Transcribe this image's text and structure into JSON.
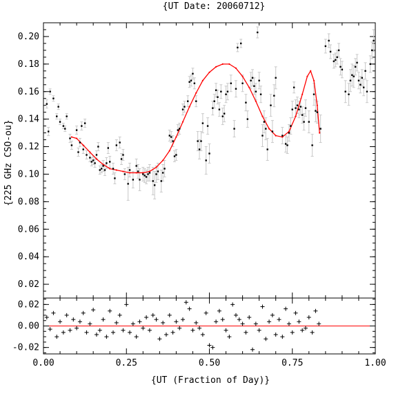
{
  "chart_data": {
    "type": "scatter",
    "title": "{UT Date: 20060712}",
    "xlabel": "{UT (Fraction of Day)}",
    "ylabel": "{225 GHz CSO-ou}",
    "xlim": [
      0.0,
      1.0
    ],
    "ylim": [
      0.01,
      0.21
    ],
    "xticks": [
      "0.00",
      "0.25",
      "0.50",
      "0.75",
      "1.00"
    ],
    "yticks": [
      "0.02",
      "0.04",
      "0.06",
      "0.08",
      "0.10",
      "0.12",
      "0.14",
      "0.16",
      "0.18",
      "0.20"
    ],
    "grid": false,
    "colors": {
      "data": "#000000",
      "errorbar": "#c8c8c8",
      "fit": "#ff0000",
      "zero_line": "#ff0000"
    },
    "series": [
      {
        "kind": "measurements_with_errorbars",
        "points": [
          [
            0.01,
            0.151,
            0.003
          ],
          [
            0.015,
            0.131,
            0.003
          ],
          [
            0.02,
            0.16,
            0.002
          ],
          [
            0.03,
            0.155,
            0.002
          ],
          [
            0.04,
            0.142,
            0.002
          ],
          [
            0.045,
            0.149,
            0.002
          ],
          [
            0.05,
            0.138,
            0.002
          ],
          [
            0.06,
            0.135,
            0.002
          ],
          [
            0.065,
            0.133,
            0.002
          ],
          [
            0.07,
            0.142,
            0.002
          ],
          [
            0.08,
            0.126,
            0.003
          ],
          [
            0.085,
            0.121,
            0.003
          ],
          [
            0.1,
            0.132,
            0.003
          ],
          [
            0.105,
            0.116,
            0.003
          ],
          [
            0.11,
            0.123,
            0.003
          ],
          [
            0.115,
            0.135,
            0.003
          ],
          [
            0.12,
            0.118,
            0.003
          ],
          [
            0.125,
            0.137,
            0.003
          ],
          [
            0.13,
            0.114,
            0.003
          ],
          [
            0.14,
            0.112,
            0.003
          ],
          [
            0.145,
            0.109,
            0.003
          ],
          [
            0.15,
            0.11,
            0.003
          ],
          [
            0.155,
            0.108,
            0.003
          ],
          [
            0.16,
            0.114,
            0.003
          ],
          [
            0.165,
            0.12,
            0.003
          ],
          [
            0.17,
            0.103,
            0.003
          ],
          [
            0.175,
            0.104,
            0.003
          ],
          [
            0.18,
            0.106,
            0.004
          ],
          [
            0.185,
            0.103,
            0.004
          ],
          [
            0.19,
            0.108,
            0.004
          ],
          [
            0.195,
            0.119,
            0.004
          ],
          [
            0.2,
            0.109,
            0.004
          ],
          [
            0.21,
            0.104,
            0.004
          ],
          [
            0.215,
            0.097,
            0.004
          ],
          [
            0.22,
            0.121,
            0.004
          ],
          [
            0.23,
            0.123,
            0.004
          ],
          [
            0.235,
            0.111,
            0.004
          ],
          [
            0.24,
            0.114,
            0.004
          ],
          [
            0.245,
            0.1,
            0.004
          ],
          [
            0.255,
            0.093,
            0.012
          ],
          [
            0.26,
            0.103,
            0.005
          ],
          [
            0.27,
            0.096,
            0.006
          ],
          [
            0.28,
            0.106,
            0.005
          ],
          [
            0.285,
            0.102,
            0.005
          ],
          [
            0.29,
            0.096,
            0.008
          ],
          [
            0.3,
            0.1,
            0.005
          ],
          [
            0.305,
            0.099,
            0.005
          ],
          [
            0.31,
            0.098,
            0.005
          ],
          [
            0.315,
            0.1,
            0.005
          ],
          [
            0.32,
            0.101,
            0.006
          ],
          [
            0.33,
            0.095,
            0.01
          ],
          [
            0.335,
            0.092,
            0.01
          ],
          [
            0.34,
            0.1,
            0.006
          ],
          [
            0.345,
            0.102,
            0.006
          ],
          [
            0.355,
            0.095,
            0.008
          ],
          [
            0.36,
            0.101,
            0.006
          ],
          [
            0.365,
            0.104,
            0.006
          ],
          [
            0.38,
            0.128,
            0.004
          ],
          [
            0.385,
            0.127,
            0.004
          ],
          [
            0.39,
            0.124,
            0.004
          ],
          [
            0.395,
            0.113,
            0.004
          ],
          [
            0.4,
            0.114,
            0.004
          ],
          [
            0.405,
            0.132,
            0.004
          ],
          [
            0.41,
            0.133,
            0.004
          ],
          [
            0.42,
            0.147,
            0.004
          ],
          [
            0.425,
            0.149,
            0.004
          ],
          [
            0.435,
            0.153,
            0.004
          ],
          [
            0.44,
            0.167,
            0.004
          ],
          [
            0.445,
            0.168,
            0.004
          ],
          [
            0.45,
            0.173,
            0.004
          ],
          [
            0.455,
            0.166,
            0.004
          ],
          [
            0.46,
            0.153,
            0.004
          ],
          [
            0.465,
            0.124,
            0.007
          ],
          [
            0.47,
            0.118,
            0.007
          ],
          [
            0.475,
            0.124,
            0.007
          ],
          [
            0.48,
            0.137,
            0.007
          ],
          [
            0.49,
            0.11,
            0.01
          ],
          [
            0.495,
            0.135,
            0.006
          ],
          [
            0.5,
            0.115,
            0.007
          ],
          [
            0.51,
            0.148,
            0.005
          ],
          [
            0.515,
            0.153,
            0.005
          ],
          [
            0.52,
            0.161,
            0.005
          ],
          [
            0.525,
            0.156,
            0.005
          ],
          [
            0.53,
            0.147,
            0.005
          ],
          [
            0.535,
            0.16,
            0.005
          ],
          [
            0.54,
            0.142,
            0.006
          ],
          [
            0.545,
            0.144,
            0.006
          ],
          [
            0.55,
            0.158,
            0.006
          ],
          [
            0.555,
            0.16,
            0.006
          ],
          [
            0.565,
            0.166,
            0.006
          ],
          [
            0.575,
            0.133,
            0.006
          ],
          [
            0.58,
            0.162,
            0.006
          ],
          [
            0.585,
            0.192,
            0.003
          ],
          [
            0.595,
            0.195,
            0.003
          ],
          [
            0.6,
            0.166,
            0.006
          ],
          [
            0.61,
            0.152,
            0.006
          ],
          [
            0.615,
            0.14,
            0.006
          ],
          [
            0.625,
            0.168,
            0.006
          ],
          [
            0.63,
            0.17,
            0.006
          ],
          [
            0.635,
            0.164,
            0.006
          ],
          [
            0.64,
            0.16,
            0.006
          ],
          [
            0.645,
            0.203,
            0.004
          ],
          [
            0.65,
            0.168,
            0.006
          ],
          [
            0.655,
            0.158,
            0.006
          ],
          [
            0.66,
            0.128,
            0.008
          ],
          [
            0.665,
            0.138,
            0.008
          ],
          [
            0.67,
            0.133,
            0.008
          ],
          [
            0.675,
            0.118,
            0.008
          ],
          [
            0.685,
            0.15,
            0.008
          ],
          [
            0.69,
            0.131,
            0.008
          ],
          [
            0.695,
            0.157,
            0.008
          ],
          [
            0.7,
            0.17,
            0.008
          ],
          [
            0.72,
            0.128,
            0.006
          ],
          [
            0.73,
            0.122,
            0.006
          ],
          [
            0.735,
            0.121,
            0.006
          ],
          [
            0.74,
            0.13,
            0.006
          ],
          [
            0.745,
            0.135,
            0.006
          ],
          [
            0.75,
            0.147,
            0.006
          ],
          [
            0.755,
            0.163,
            0.004
          ],
          [
            0.76,
            0.148,
            0.006
          ],
          [
            0.765,
            0.15,
            0.006
          ],
          [
            0.77,
            0.147,
            0.006
          ],
          [
            0.775,
            0.149,
            0.006
          ],
          [
            0.78,
            0.143,
            0.006
          ],
          [
            0.785,
            0.138,
            0.006
          ],
          [
            0.79,
            0.148,
            0.006
          ],
          [
            0.8,
            0.138,
            0.008
          ],
          [
            0.81,
            0.121,
            0.008
          ],
          [
            0.815,
            0.158,
            0.008
          ],
          [
            0.82,
            0.146,
            0.008
          ],
          [
            0.825,
            0.145,
            0.008
          ],
          [
            0.835,
            0.133,
            0.01
          ],
          [
            0.85,
            0.193,
            0.005
          ],
          [
            0.86,
            0.197,
            0.005
          ],
          [
            0.865,
            0.189,
            0.005
          ],
          [
            0.875,
            0.182,
            0.005
          ],
          [
            0.88,
            0.183,
            0.005
          ],
          [
            0.885,
            0.185,
            0.005
          ],
          [
            0.89,
            0.19,
            0.005
          ],
          [
            0.895,
            0.178,
            0.006
          ],
          [
            0.9,
            0.176,
            0.006
          ],
          [
            0.91,
            0.16,
            0.008
          ],
          [
            0.92,
            0.158,
            0.008
          ],
          [
            0.925,
            0.168,
            0.008
          ],
          [
            0.93,
            0.172,
            0.008
          ],
          [
            0.935,
            0.171,
            0.008
          ],
          [
            0.94,
            0.178,
            0.006
          ],
          [
            0.945,
            0.181,
            0.006
          ],
          [
            0.95,
            0.168,
            0.006
          ],
          [
            0.955,
            0.165,
            0.006
          ],
          [
            0.96,
            0.17,
            0.006
          ],
          [
            0.965,
            0.163,
            0.006
          ],
          [
            0.97,
            0.175,
            0.006
          ],
          [
            0.975,
            0.16,
            0.008
          ],
          [
            0.985,
            0.18,
            0.006
          ],
          [
            0.99,
            0.19,
            0.006
          ],
          [
            0.995,
            0.197,
            0.008
          ]
        ]
      },
      {
        "kind": "fit_curve",
        "points": [
          [
            0.085,
            0.127
          ],
          [
            0.1,
            0.126
          ],
          [
            0.12,
            0.121
          ],
          [
            0.14,
            0.116
          ],
          [
            0.16,
            0.111
          ],
          [
            0.18,
            0.107
          ],
          [
            0.2,
            0.104
          ],
          [
            0.22,
            0.103
          ],
          [
            0.24,
            0.102
          ],
          [
            0.26,
            0.101
          ],
          [
            0.28,
            0.101
          ],
          [
            0.3,
            0.101
          ],
          [
            0.32,
            0.102
          ],
          [
            0.34,
            0.105
          ],
          [
            0.36,
            0.11
          ],
          [
            0.38,
            0.117
          ],
          [
            0.4,
            0.127
          ],
          [
            0.42,
            0.138
          ],
          [
            0.44,
            0.149
          ],
          [
            0.46,
            0.159
          ],
          [
            0.48,
            0.168
          ],
          [
            0.5,
            0.174
          ],
          [
            0.52,
            0.178
          ],
          [
            0.54,
            0.18
          ],
          [
            0.56,
            0.18
          ],
          [
            0.58,
            0.177
          ],
          [
            0.6,
            0.171
          ],
          [
            0.62,
            0.163
          ],
          [
            0.64,
            0.153
          ],
          [
            0.66,
            0.142
          ],
          [
            0.68,
            0.133
          ],
          [
            0.7,
            0.128
          ],
          [
            0.72,
            0.127
          ],
          [
            0.74,
            0.131
          ],
          [
            0.76,
            0.142
          ],
          [
            0.78,
            0.158
          ],
          [
            0.795,
            0.171
          ],
          [
            0.805,
            0.175
          ],
          [
            0.815,
            0.168
          ],
          [
            0.825,
            0.15
          ],
          [
            0.832,
            0.13
          ]
        ]
      }
    ],
    "residual_panel": {
      "ylim": [
        -0.026,
        0.026
      ],
      "yticks": [
        "0.02",
        "0.00",
        "-0.02"
      ],
      "x": [
        0.01,
        0.02,
        0.03,
        0.04,
        0.05,
        0.06,
        0.07,
        0.08,
        0.09,
        0.1,
        0.11,
        0.12,
        0.13,
        0.14,
        0.15,
        0.16,
        0.17,
        0.18,
        0.19,
        0.2,
        0.21,
        0.22,
        0.23,
        0.24,
        0.25,
        0.26,
        0.27,
        0.28,
        0.29,
        0.3,
        0.31,
        0.32,
        0.33,
        0.34,
        0.35,
        0.36,
        0.37,
        0.38,
        0.39,
        0.4,
        0.41,
        0.42,
        0.43,
        0.44,
        0.45,
        0.46,
        0.47,
        0.48,
        0.49,
        0.5,
        0.51,
        0.52,
        0.53,
        0.54,
        0.55,
        0.56,
        0.57,
        0.58,
        0.59,
        0.6,
        0.61,
        0.62,
        0.63,
        0.64,
        0.65,
        0.66,
        0.67,
        0.68,
        0.69,
        0.7,
        0.71,
        0.72,
        0.73,
        0.74,
        0.75,
        0.76,
        0.77,
        0.78,
        0.79,
        0.8,
        0.81,
        0.82,
        0.83
      ],
      "residuals": [
        0.008,
        -0.003,
        0.012,
        -0.01,
        0.004,
        -0.006,
        0.01,
        -0.004,
        0.006,
        -0.002,
        0.004,
        0.012,
        -0.006,
        0.002,
        0.015,
        -0.008,
        -0.004,
        0.006,
        -0.01,
        0.014,
        -0.006,
        0.003,
        0.01,
        -0.004,
        0.02,
        -0.006,
        0.002,
        -0.01,
        0.004,
        -0.002,
        0.008,
        -0.004,
        0.01,
        0.006,
        -0.012,
        0.003,
        -0.008,
        0.01,
        -0.006,
        0.004,
        -0.002,
        0.006,
        0.022,
        0.016,
        -0.004,
        0.003,
        -0.002,
        -0.008,
        0.012,
        -0.018,
        -0.02,
        0.004,
        0.014,
        0.006,
        -0.004,
        -0.01,
        0.02,
        0.01,
        0.006,
        0.002,
        -0.006,
        0.008,
        -0.022,
        0.002,
        -0.004,
        0.018,
        -0.012,
        0.004,
        0.01,
        -0.008,
        0.006,
        -0.01,
        0.016,
        0.002,
        -0.006,
        0.012,
        0.004,
        -0.004,
        -0.002,
        0.008,
        -0.006,
        0.014,
        0.002
      ]
    }
  }
}
